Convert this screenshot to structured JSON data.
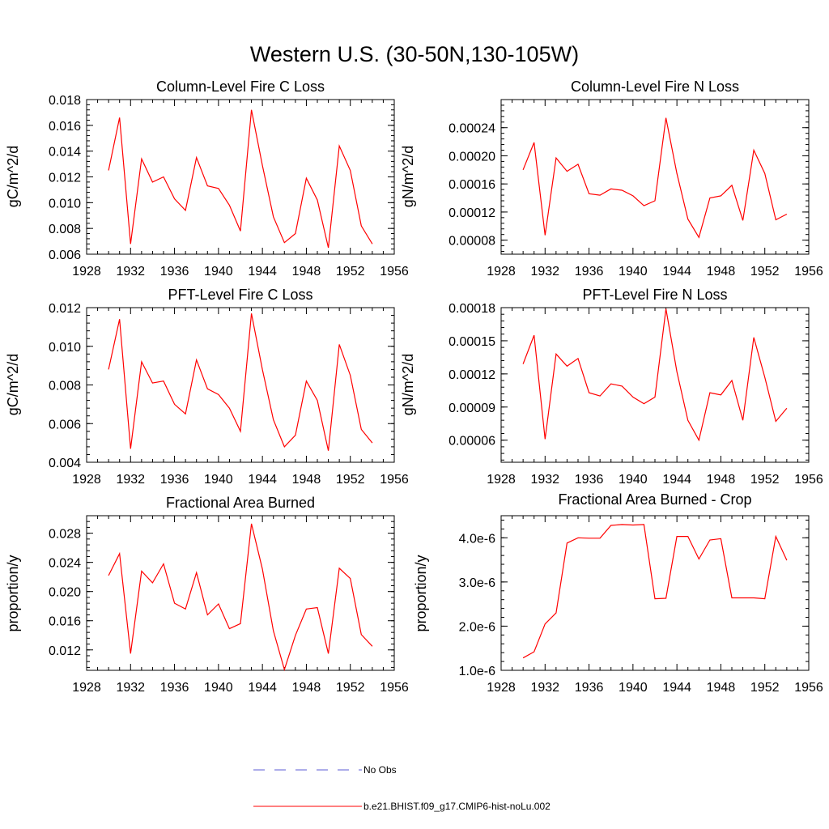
{
  "page": {
    "title": "Western U.S. (30-50N,130-105W)"
  },
  "legend": {
    "entries": [
      {
        "label": "No Obs",
        "color": "#5b5bd6",
        "style": "dashed"
      },
      {
        "label": "b.e21.BHIST.f09_g17.CMIP6-hist-noLu.002",
        "color": "#ff0000",
        "style": "solid"
      }
    ]
  },
  "chart_data": [
    {
      "type": "line",
      "title": "Column-Level Fire C Loss",
      "xlabel": "",
      "ylabel": "gC/m^2/d",
      "xlim": [
        1928,
        1956
      ],
      "ylim": [
        0.006,
        0.018
      ],
      "xticks": [
        1928,
        1932,
        1936,
        1940,
        1944,
        1948,
        1952,
        1956
      ],
      "yticks": [
        0.006,
        0.008,
        0.01,
        0.012,
        0.014,
        0.016,
        0.018
      ],
      "ytick_labels": [
        "0.006",
        "0.008",
        "0.010",
        "0.012",
        "0.014",
        "0.016",
        "0.018"
      ],
      "x": [
        1930,
        1931,
        1932,
        1933,
        1934,
        1935,
        1936,
        1937,
        1938,
        1939,
        1940,
        1941,
        1942,
        1943,
        1944,
        1945,
        1946,
        1947,
        1948,
        1949,
        1950,
        1951,
        1952,
        1953,
        1954
      ],
      "series": [
        {
          "name": "b.e21.BHIST.f09_g17.CMIP6-hist-noLu.002",
          "color": "#ff0000",
          "values": [
            0.0125,
            0.0166,
            0.0068,
            0.0134,
            0.0116,
            0.012,
            0.0103,
            0.0094,
            0.0135,
            0.0113,
            0.0111,
            0.0098,
            0.0078,
            0.0172,
            0.0129,
            0.0089,
            0.0069,
            0.0076,
            0.0119,
            0.0102,
            0.0065,
            0.0144,
            0.0125,
            0.0082,
            0.0068
          ]
        }
      ]
    },
    {
      "type": "line",
      "title": "Column-Level Fire N Loss",
      "xlabel": "",
      "ylabel": "gN/m^2/d",
      "xlim": [
        1928,
        1956
      ],
      "ylim": [
        6e-05,
        0.00028
      ],
      "xticks": [
        1928,
        1932,
        1936,
        1940,
        1944,
        1948,
        1952,
        1956
      ],
      "yticks": [
        8e-05,
        0.00012,
        0.00016,
        0.0002,
        0.00024
      ],
      "ytick_labels": [
        "0.00008",
        "0.00012",
        "0.00016",
        "0.00020",
        "0.00024"
      ],
      "x": [
        1930,
        1931,
        1932,
        1933,
        1934,
        1935,
        1936,
        1937,
        1938,
        1939,
        1940,
        1941,
        1942,
        1943,
        1944,
        1945,
        1946,
        1947,
        1948,
        1949,
        1950,
        1951,
        1952,
        1953,
        1954
      ],
      "series": [
        {
          "name": "b.e21.BHIST.f09_g17.CMIP6-hist-noLu.002",
          "color": "#ff0000",
          "values": [
            0.00018,
            0.000219,
            8.7e-05,
            0.000197,
            0.000178,
            0.000188,
            0.000146,
            0.000144,
            0.000153,
            0.000151,
            0.000143,
            0.000129,
            0.000136,
            0.000254,
            0.000175,
            0.00011,
            8.4e-05,
            0.00014,
            0.000143,
            0.000158,
            0.000108,
            0.000208,
            0.000175,
            0.000109,
            0.000117
          ]
        }
      ]
    },
    {
      "type": "line",
      "title": "PFT-Level Fire C Loss",
      "xlabel": "",
      "ylabel": "gC/m^2/d",
      "xlim": [
        1928,
        1956
      ],
      "ylim": [
        0.004,
        0.012
      ],
      "xticks": [
        1928,
        1932,
        1936,
        1940,
        1944,
        1948,
        1952,
        1956
      ],
      "yticks": [
        0.004,
        0.006,
        0.008,
        0.01,
        0.012
      ],
      "ytick_labels": [
        "0.004",
        "0.006",
        "0.008",
        "0.010",
        "0.012"
      ],
      "x": [
        1930,
        1931,
        1932,
        1933,
        1934,
        1935,
        1936,
        1937,
        1938,
        1939,
        1940,
        1941,
        1942,
        1943,
        1944,
        1945,
        1946,
        1947,
        1948,
        1949,
        1950,
        1951,
        1952,
        1953,
        1954
      ],
      "series": [
        {
          "name": "b.e21.BHIST.f09_g17.CMIP6-hist-noLu.002",
          "color": "#ff0000",
          "values": [
            0.0088,
            0.0114,
            0.0047,
            0.0092,
            0.0081,
            0.0082,
            0.007,
            0.0065,
            0.0093,
            0.0078,
            0.0075,
            0.0068,
            0.0056,
            0.0117,
            0.0088,
            0.0062,
            0.0048,
            0.0054,
            0.0082,
            0.0072,
            0.0046,
            0.0101,
            0.0085,
            0.0057,
            0.005
          ]
        }
      ]
    },
    {
      "type": "line",
      "title": "PFT-Level Fire N Loss",
      "xlabel": "",
      "ylabel": "gN/m^2/d",
      "xlim": [
        1928,
        1956
      ],
      "ylim": [
        4e-05,
        0.00018
      ],
      "xticks": [
        1928,
        1932,
        1936,
        1940,
        1944,
        1948,
        1952,
        1956
      ],
      "yticks": [
        6e-05,
        9e-05,
        0.00012,
        0.00015,
        0.00018
      ],
      "ytick_labels": [
        "0.00006",
        "0.00009",
        "0.00012",
        "0.00015",
        "0.00018"
      ],
      "x": [
        1930,
        1931,
        1932,
        1933,
        1934,
        1935,
        1936,
        1937,
        1938,
        1939,
        1940,
        1941,
        1942,
        1943,
        1944,
        1945,
        1946,
        1947,
        1948,
        1949,
        1950,
        1951,
        1952,
        1953,
        1954
      ],
      "series": [
        {
          "name": "b.e21.BHIST.f09_g17.CMIP6-hist-noLu.002",
          "color": "#ff0000",
          "values": [
            0.000129,
            0.000155,
            6.1e-05,
            0.000138,
            0.000127,
            0.000134,
            0.000103,
            0.0001,
            0.000111,
            0.000109,
            9.9e-05,
            9.3e-05,
            9.9e-05,
            0.000179,
            0.000122,
            7.8e-05,
            6e-05,
            0.000103,
            0.000101,
            0.000114,
            7.8e-05,
            0.000153,
            0.000117,
            7.7e-05,
            8.9e-05
          ]
        }
      ]
    },
    {
      "type": "line",
      "title": "Fractional Area Burned",
      "xlabel": "",
      "ylabel": "proportion/y",
      "xlim": [
        1928,
        1956
      ],
      "ylim": [
        0.0092,
        0.0304
      ],
      "xticks": [
        1928,
        1932,
        1936,
        1940,
        1944,
        1948,
        1952,
        1956
      ],
      "yticks": [
        0.012,
        0.016,
        0.02,
        0.024,
        0.028
      ],
      "ytick_labels": [
        "0.012",
        "0.016",
        "0.020",
        "0.024",
        "0.028"
      ],
      "x": [
        1930,
        1931,
        1932,
        1933,
        1934,
        1935,
        1936,
        1937,
        1938,
        1939,
        1940,
        1941,
        1942,
        1943,
        1944,
        1945,
        1946,
        1947,
        1948,
        1949,
        1950,
        1951,
        1952,
        1953,
        1954
      ],
      "series": [
        {
          "name": "b.e21.BHIST.f09_g17.CMIP6-hist-noLu.002",
          "color": "#ff0000",
          "values": [
            0.0222,
            0.0252,
            0.0115,
            0.0228,
            0.0212,
            0.0238,
            0.0184,
            0.0176,
            0.0226,
            0.0168,
            0.0183,
            0.0149,
            0.0156,
            0.0293,
            0.0231,
            0.0146,
            0.0093,
            0.014,
            0.0176,
            0.0178,
            0.0115,
            0.0232,
            0.0218,
            0.0141,
            0.0125
          ]
        }
      ]
    },
    {
      "type": "line",
      "title": "Fractional Area Burned - Crop",
      "xlabel": "",
      "ylabel": "proportion/y",
      "xlim": [
        1928,
        1956
      ],
      "ylim": [
        1e-06,
        4.5e-06
      ],
      "xticks": [
        1928,
        1932,
        1936,
        1940,
        1944,
        1948,
        1952,
        1956
      ],
      "yticks": [
        1e-06,
        2e-06,
        3e-06,
        4e-06
      ],
      "ytick_labels": [
        "1.0e-6",
        "2.0e-6",
        "3.0e-6",
        "4.0e-6"
      ],
      "x": [
        1930,
        1931,
        1932,
        1933,
        1934,
        1935,
        1936,
        1937,
        1938,
        1939,
        1940,
        1941,
        1942,
        1943,
        1944,
        1945,
        1946,
        1947,
        1948,
        1949,
        1950,
        1951,
        1952,
        1953,
        1954
      ],
      "series": [
        {
          "name": "b.e21.BHIST.f09_g17.CMIP6-hist-noLu.002",
          "color": "#ff0000",
          "values": [
            1.28e-06,
            1.42e-06,
            2.05e-06,
            2.3e-06,
            3.88e-06,
            4e-06,
            3.99e-06,
            3.99e-06,
            4.28e-06,
            4.3e-06,
            4.29e-06,
            4.3e-06,
            2.62e-06,
            2.63e-06,
            4.03e-06,
            4.03e-06,
            3.52e-06,
            3.95e-06,
            3.98e-06,
            2.64e-06,
            2.64e-06,
            2.64e-06,
            2.62e-06,
            4.03e-06,
            3.49e-06
          ]
        }
      ]
    }
  ]
}
